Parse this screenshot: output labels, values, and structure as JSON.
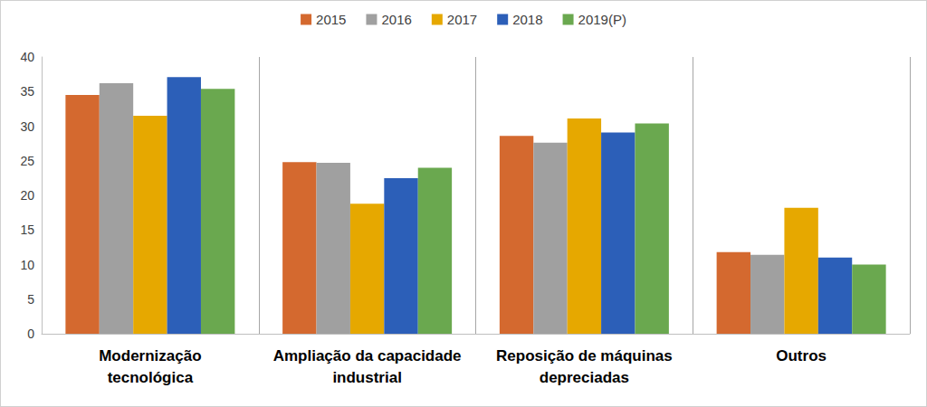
{
  "chart_data": {
    "type": "bar",
    "categories": [
      "Modernização\ntecnológica",
      "Ampliação da capacidade\nindustrial",
      "Reposição de máquinas\ndepreciadas",
      "Outros"
    ],
    "series": [
      {
        "name": "2015",
        "color": "#d4692f",
        "values": [
          34.5,
          24.8,
          28.6,
          11.8
        ]
      },
      {
        "name": "2016",
        "color": "#a0a0a0",
        "values": [
          36.2,
          24.7,
          27.6,
          11.4
        ]
      },
      {
        "name": "2017",
        "color": "#e6a800",
        "values": [
          31.5,
          18.8,
          31.1,
          18.2
        ]
      },
      {
        "name": "2018",
        "color": "#2c5fb8",
        "values": [
          37.1,
          22.5,
          29.1,
          11.0
        ]
      },
      {
        "name": "2019(P)",
        "color": "#6aa84f",
        "values": [
          35.4,
          24.0,
          30.4,
          10.0
        ]
      }
    ],
    "ylim": [
      0,
      40
    ],
    "yticks": [
      0,
      5,
      10,
      15,
      20,
      25,
      30,
      35,
      40
    ],
    "grid": false,
    "legend": "top"
  }
}
